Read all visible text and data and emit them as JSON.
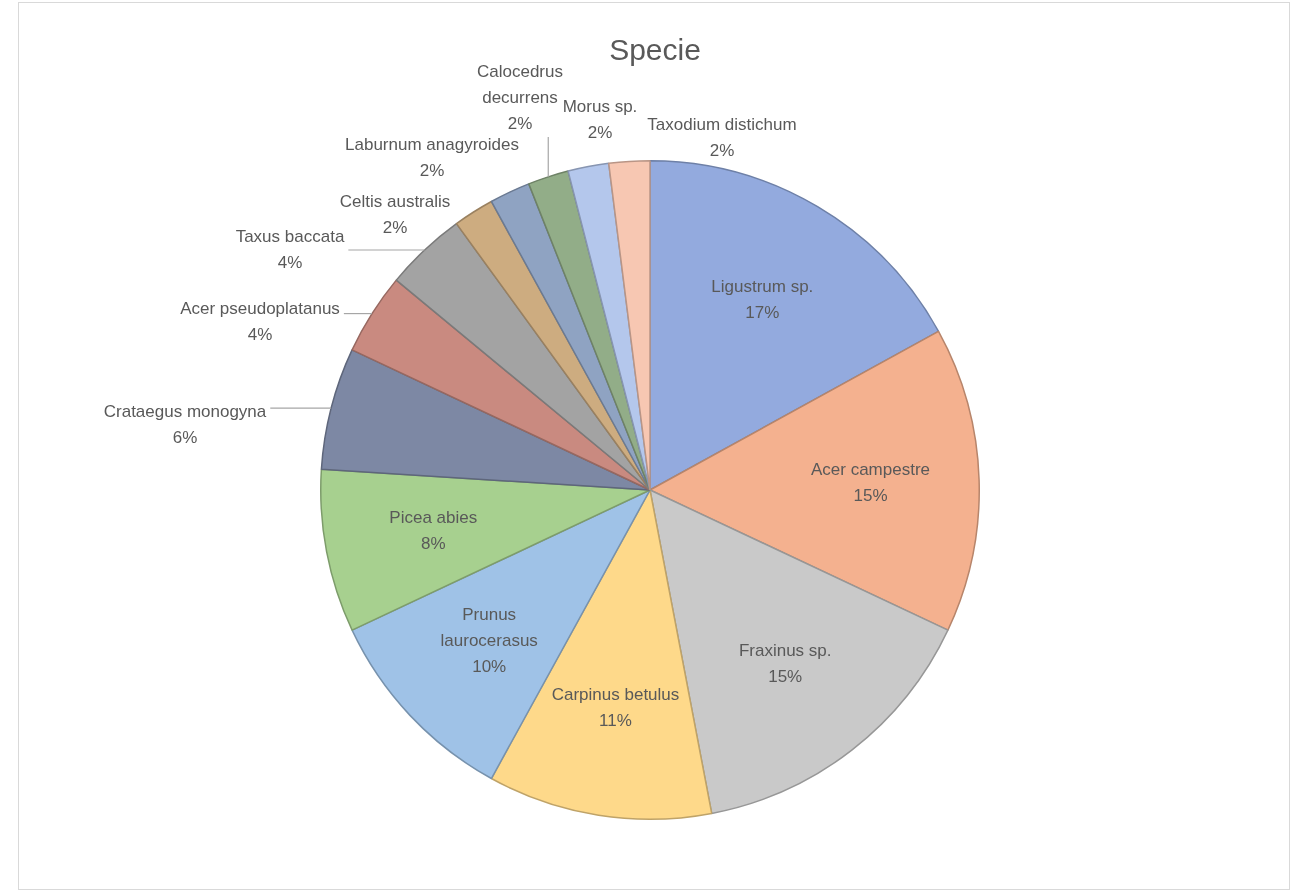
{
  "chart_data": {
    "type": "pie",
    "title": "Specie",
    "categories": [
      "Ligustrum sp.",
      "Acer campestre",
      "Fraxinus sp.",
      "Carpinus betulus",
      "Prunus laurocerasus",
      "Picea abies",
      "Crataegus monogyna",
      "Acer pseudoplatanus",
      "Taxus baccata",
      "Celtis australis",
      "Laburnum anagyroides",
      "Calocedrus decurrens",
      "Morus sp.",
      "Taxodium distichum"
    ],
    "values": [
      17,
      15,
      15,
      11,
      10,
      8,
      6,
      4,
      4,
      2,
      2,
      2,
      2,
      2
    ],
    "value_labels": [
      "17%",
      "15%",
      "15%",
      "11%",
      "10%",
      "8%",
      "6%",
      "4%",
      "4%",
      "2%",
      "2%",
      "2%",
      "2%",
      "2%"
    ],
    "colors": [
      "#93aade",
      "#f4b18f",
      "#c9c9c9",
      "#fed98a",
      "#9fc2e7",
      "#a7d08f",
      "#7d88a4",
      "#c98a80",
      "#a3a3a3",
      "#cdac80",
      "#8fa3c2",
      "#92ad88",
      "#b4c7ec",
      "#f7c7b2"
    ],
    "legend": false
  }
}
